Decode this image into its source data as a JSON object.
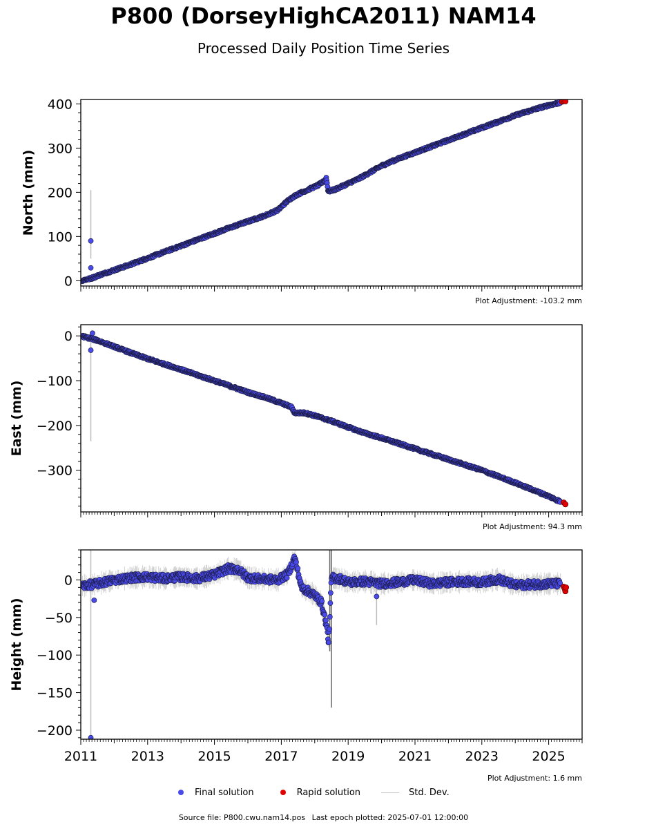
{
  "title": "P800 (DorseyHighCA2011) NAM14",
  "subtitle": "Processed Daily Position Time Series",
  "legend": {
    "final": "Final solution",
    "rapid": "Rapid solution",
    "std": "Std. Dev."
  },
  "footer": {
    "source": "Source file: P800.cwu.nam14.pos",
    "last_epoch": "Last epoch plotted: 2025-07-01 12:00:00"
  },
  "colors": {
    "final": "#4a4ae8",
    "final_edge": "#1a1a40",
    "rapid": "#e00000",
    "std": "#c8c8c8"
  },
  "chart_data": [
    {
      "type": "scatter",
      "ylabel": "North (mm)",
      "adjustment": "Plot Adjustment: -103.2 mm",
      "xlim": [
        2011.0,
        2026.0
      ],
      "ylim": [
        -12,
        410
      ],
      "yticks": [
        0,
        100,
        200,
        300,
        400
      ],
      "yticks_minor": 20,
      "series": [
        {
          "name": "Final solution",
          "x": [
            2011.05,
            2011.3,
            2011.6,
            2012.0,
            2012.5,
            2013.0,
            2013.5,
            2014.0,
            2014.5,
            2015.0,
            2015.5,
            2016.0,
            2016.5,
            2016.9,
            2017.15,
            2017.3,
            2017.5,
            2017.8,
            2018.1,
            2018.3,
            2018.35,
            2018.4,
            2018.6,
            2018.8,
            2019.0,
            2019.3,
            2019.7,
            2020.0,
            2020.5,
            2021.0,
            2021.5,
            2022.0,
            2022.5,
            2023.0,
            2023.5,
            2024.0,
            2024.5,
            2025.0,
            2025.35
          ],
          "y": [
            1,
            5,
            14,
            24,
            37,
            51,
            65,
            79,
            93,
            107,
            121,
            134,
            147,
            160,
            178,
            187,
            196,
            206,
            216,
            226,
            233,
            202,
            206,
            213,
            220,
            230,
            247,
            260,
            276,
            290,
            304,
            318,
            332,
            346,
            360,
            374,
            386,
            397,
            403
          ],
          "outliers": [
            {
              "x": 2011.3,
              "y": 90
            },
            {
              "x": 2011.3,
              "y": 29
            }
          ],
          "std": [
            {
              "x": 2011.3,
              "lo": 50,
              "hi": 205
            }
          ]
        },
        {
          "name": "Rapid solution",
          "x": [
            2025.4,
            2025.45,
            2025.5
          ],
          "y": [
            405,
            407,
            406
          ]
        }
      ]
    },
    {
      "type": "scatter",
      "ylabel": "East (mm)",
      "adjustment": "Plot Adjustment: 94.3 mm",
      "xlim": [
        2011.0,
        2026.0
      ],
      "ylim": [
        -393,
        25
      ],
      "yticks": [
        0,
        -100,
        -200,
        -300
      ],
      "yticks_minor": 20,
      "series": [
        {
          "name": "Final solution",
          "x": [
            2011.05,
            2011.5,
            2012.0,
            2012.5,
            2013.0,
            2013.5,
            2014.0,
            2014.5,
            2015.0,
            2015.5,
            2016.0,
            2016.5,
            2017.0,
            2017.3,
            2017.4,
            2017.7,
            2018.0,
            2018.5,
            2019.0,
            2019.5,
            2020.0,
            2020.5,
            2021.0,
            2021.5,
            2022.0,
            2022.5,
            2023.0,
            2023.5,
            2024.0,
            2024.5,
            2025.0,
            2025.35
          ],
          "y": [
            -1,
            -10,
            -24,
            -38,
            -51,
            -63,
            -75,
            -88,
            -100,
            -113,
            -126,
            -137,
            -150,
            -159,
            -172,
            -172,
            -178,
            -190,
            -204,
            -217,
            -228,
            -240,
            -252,
            -264,
            -276,
            -288,
            -300,
            -314,
            -328,
            -343,
            -358,
            -370
          ],
          "outliers": [
            {
              "x": 2011.3,
              "y": -32
            },
            {
              "x": 2011.35,
              "y": 6
            }
          ],
          "std": [
            {
              "x": 2011.3,
              "lo": -235,
              "hi": 5
            }
          ]
        },
        {
          "name": "Rapid solution",
          "x": [
            2025.45,
            2025.5
          ],
          "y": [
            -372,
            -376
          ]
        }
      ]
    },
    {
      "type": "scatter",
      "ylabel": "Height (mm)",
      "adjustment": "Plot Adjustment: 1.6 mm",
      "xlim": [
        2011.0,
        2026.0
      ],
      "xticks": [
        "2011",
        "2013",
        "2015",
        "2017",
        "2019",
        "2021",
        "2023",
        "2025"
      ],
      "ylim": [
        -212,
        40
      ],
      "yticks": [
        0,
        -50,
        -100,
        -150,
        -200
      ],
      "yticks_minor": 10,
      "series": [
        {
          "name": "Final solution",
          "x": [
            2011.05,
            2011.5,
            2012.0,
            2012.5,
            2013.0,
            2013.5,
            2014.0,
            2014.5,
            2015.0,
            2015.4,
            2015.7,
            2016.0,
            2016.5,
            2016.9,
            2017.2,
            2017.4,
            2017.6,
            2017.8,
            2018.0,
            2018.2,
            2018.35,
            2018.42,
            2018.5,
            2018.8,
            2019.0,
            2019.5,
            2020.0,
            2020.5,
            2021.0,
            2021.5,
            2022.0,
            2022.5,
            2023.0,
            2023.5,
            2024.0,
            2024.5,
            2025.0,
            2025.35
          ],
          "y": [
            -8,
            -5,
            0,
            3,
            4,
            2,
            4,
            2,
            7,
            15,
            14,
            3,
            1,
            0,
            8,
            30,
            -10,
            -15,
            -20,
            -30,
            -60,
            -85,
            3,
            1,
            -3,
            -2,
            -5,
            -3,
            0,
            -5,
            -3,
            -2,
            -3,
            1,
            -7,
            -6,
            -5,
            -5
          ],
          "outliers": [
            {
              "x": 2011.3,
              "y": -210
            },
            {
              "x": 2011.4,
              "y": -27
            },
            {
              "x": 2019.85,
              "y": -22
            }
          ],
          "std": [
            {
              "x": 2011.3,
              "lo": -210,
              "hi": 40
            },
            {
              "x": 2018.5,
              "lo": -170,
              "hi": 40
            },
            {
              "x": 2018.45,
              "lo": -95,
              "hi": 40
            },
            {
              "x": 2019.85,
              "lo": -60,
              "hi": -10
            }
          ]
        },
        {
          "name": "Rapid solution",
          "x": [
            2025.45,
            2025.48,
            2025.5,
            2025.52
          ],
          "y": [
            -9,
            -12,
            -15,
            -10
          ]
        }
      ]
    }
  ]
}
